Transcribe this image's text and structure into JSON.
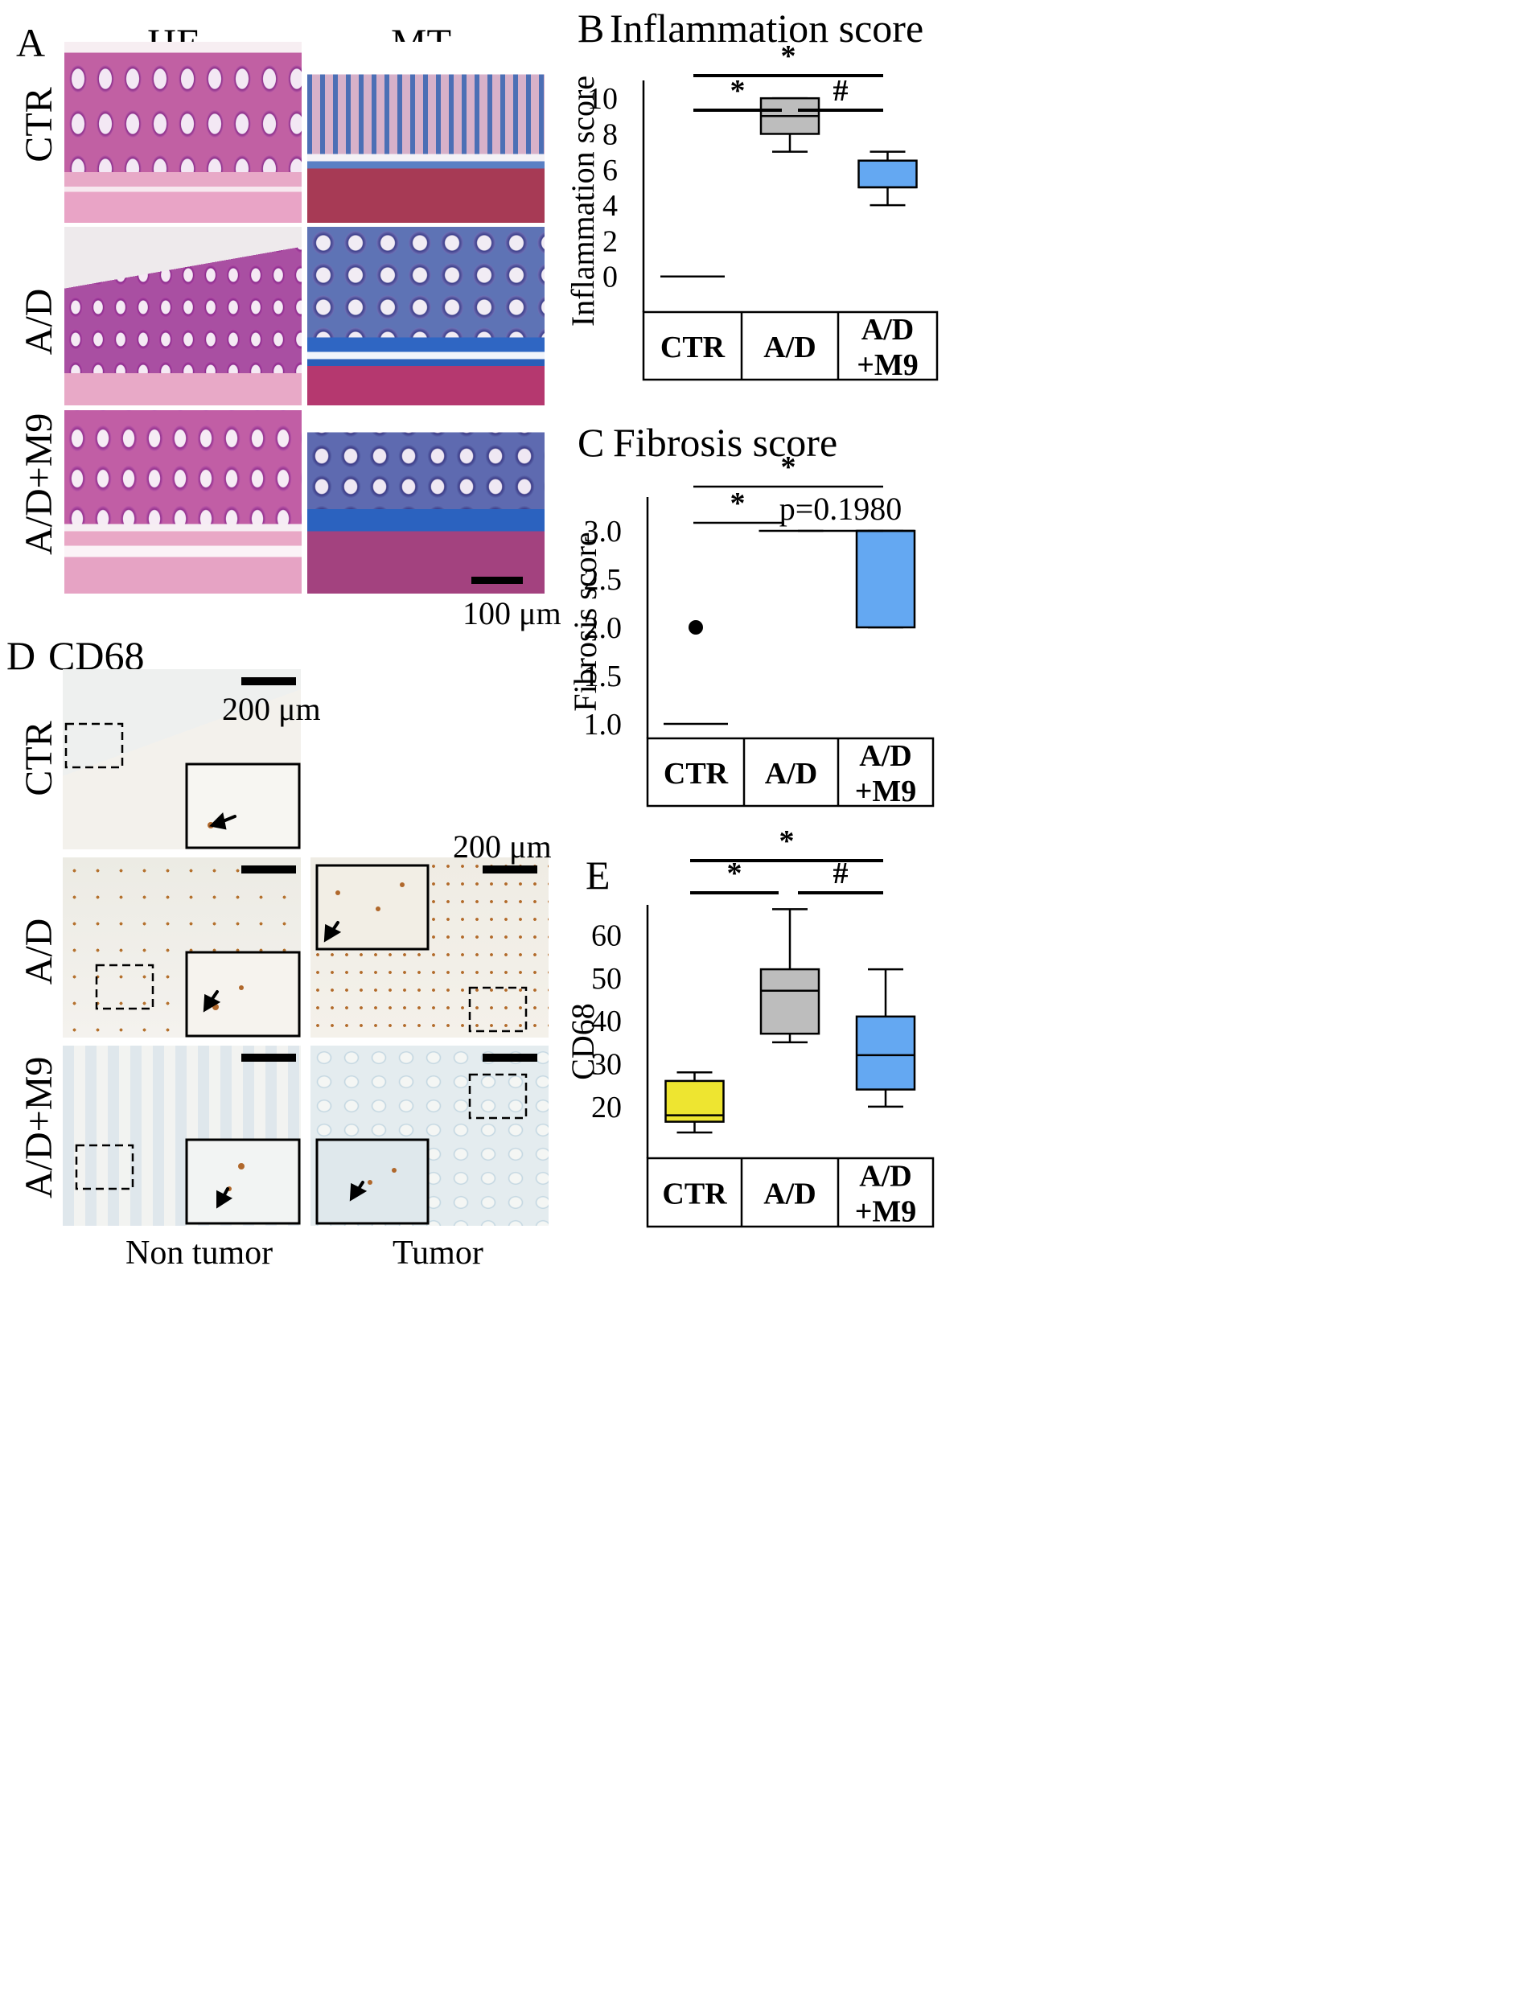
{
  "panel_a": {
    "letter": "A",
    "col_he": "HE",
    "col_mt": "MT",
    "rows": [
      "CTR",
      "A/D",
      "A/D+M9"
    ],
    "scale": "100 μm"
  },
  "panel_d": {
    "letter": "D",
    "title": "CD68",
    "rows": [
      "CTR",
      "A/D",
      "A/D+M9"
    ],
    "scale_left": "200 μm",
    "scale_right": "200 μm",
    "col_non_tumor": "Non tumor",
    "col_tumor": "Tumor"
  },
  "colors": {
    "he_pink": "#c14d9a",
    "mt_blue": "#3f6fb8",
    "ad_gray": "#bdbdbd",
    "m9_blue": "#64a8f2",
    "ctr_yellow": "#eee530",
    "cd68_brown": "#b0682c"
  },
  "chart_data": [
    {
      "id": "B",
      "type": "box",
      "letter": "B",
      "title": "Inflammation score",
      "ylabel": "Inflammation score",
      "yticks": [
        "10",
        "8",
        "6",
        "4",
        "2",
        "0"
      ],
      "ylim": [
        -2,
        11
      ],
      "categories": [
        "CTR",
        "A/D",
        "A/D\n+M9"
      ],
      "boxes": [
        {
          "min": 0,
          "q1": 0,
          "median": 0,
          "q3": 0,
          "max": 0
        },
        {
          "min": 7,
          "q1": 8,
          "median": 9,
          "q3": 10,
          "max": 10
        },
        {
          "min": 4,
          "q1": 5,
          "median": 5,
          "q3": 6.5,
          "max": 7
        }
      ],
      "significance": [
        {
          "label": "*",
          "from": 0,
          "to": 2
        },
        {
          "label": "*",
          "from": 0,
          "to": 1
        },
        {
          "label": "#",
          "from": 1,
          "to": 2
        }
      ]
    },
    {
      "id": "C",
      "type": "box",
      "letter": "C",
      "title": "Fibrosis score",
      "ylabel": "Fibrosis score",
      "yticks": [
        "3.0",
        "2.5",
        "2.0",
        "1.5",
        "1.0"
      ],
      "ylim": [
        0.85,
        3.35
      ],
      "categories": [
        "CTR",
        "A/D",
        "A/D\n+M9"
      ],
      "boxes": [
        {
          "min": 1,
          "q1": 1,
          "median": 1,
          "q3": 1,
          "max": 1,
          "outlier": 2.0
        },
        {
          "min": 3,
          "q1": 3,
          "median": 3,
          "q3": 3,
          "max": 3
        },
        {
          "min": 2,
          "q1": 2,
          "median": 3,
          "q3": 3,
          "max": 3
        }
      ],
      "significance": [
        {
          "label": "*",
          "from": 0,
          "to": 2
        },
        {
          "label": "*",
          "from": 0,
          "to": 1
        },
        {
          "label": "p=0.1980",
          "from": 1,
          "to": 2
        }
      ]
    },
    {
      "id": "E",
      "type": "box",
      "letter": "E",
      "title": "",
      "ylabel": "CD68",
      "yticks": [
        "60",
        "50",
        "40",
        "30",
        "20"
      ],
      "ylim": [
        8,
        67
      ],
      "categories": [
        "CTR",
        "A/D",
        "A/D\n+M9"
      ],
      "boxes": [
        {
          "min": 14,
          "q1": 16.5,
          "median": 18,
          "q3": 26,
          "max": 28
        },
        {
          "min": 35,
          "q1": 37,
          "median": 47,
          "q3": 52,
          "max": 66
        },
        {
          "min": 20,
          "q1": 24,
          "median": 32,
          "q3": 41,
          "max": 52
        }
      ],
      "significance": [
        {
          "label": "*",
          "from": 0,
          "to": 2
        },
        {
          "label": "*",
          "from": 0,
          "to": 1
        },
        {
          "label": "#",
          "from": 1,
          "to": 2
        }
      ]
    }
  ]
}
